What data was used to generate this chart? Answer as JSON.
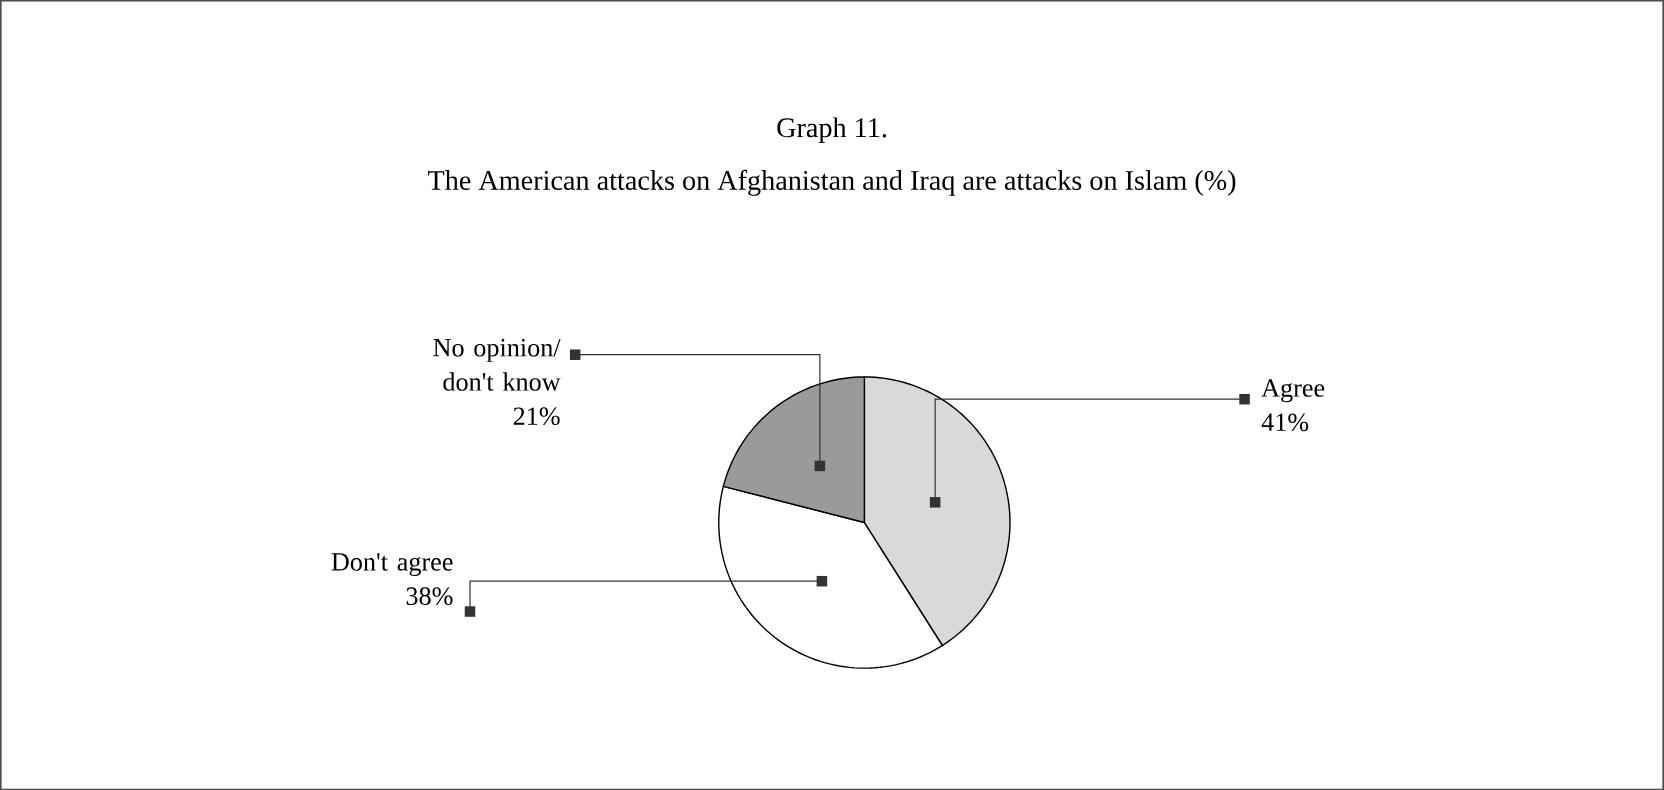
{
  "chart_data": {
    "type": "pie",
    "title": "Graph 11.",
    "subtitle": "The American attacks on Afghanistan and Iraq are attacks on Islam (%)",
    "categories": [
      "Agree",
      "Don't agree",
      "No opinion/ don't know"
    ],
    "values": [
      41,
      38,
      21
    ],
    "colors": [
      "#d9d9d9",
      "#ffffff",
      "#9a9a9a"
    ],
    "value_labels": [
      "41%",
      "38%",
      "21%"
    ]
  }
}
